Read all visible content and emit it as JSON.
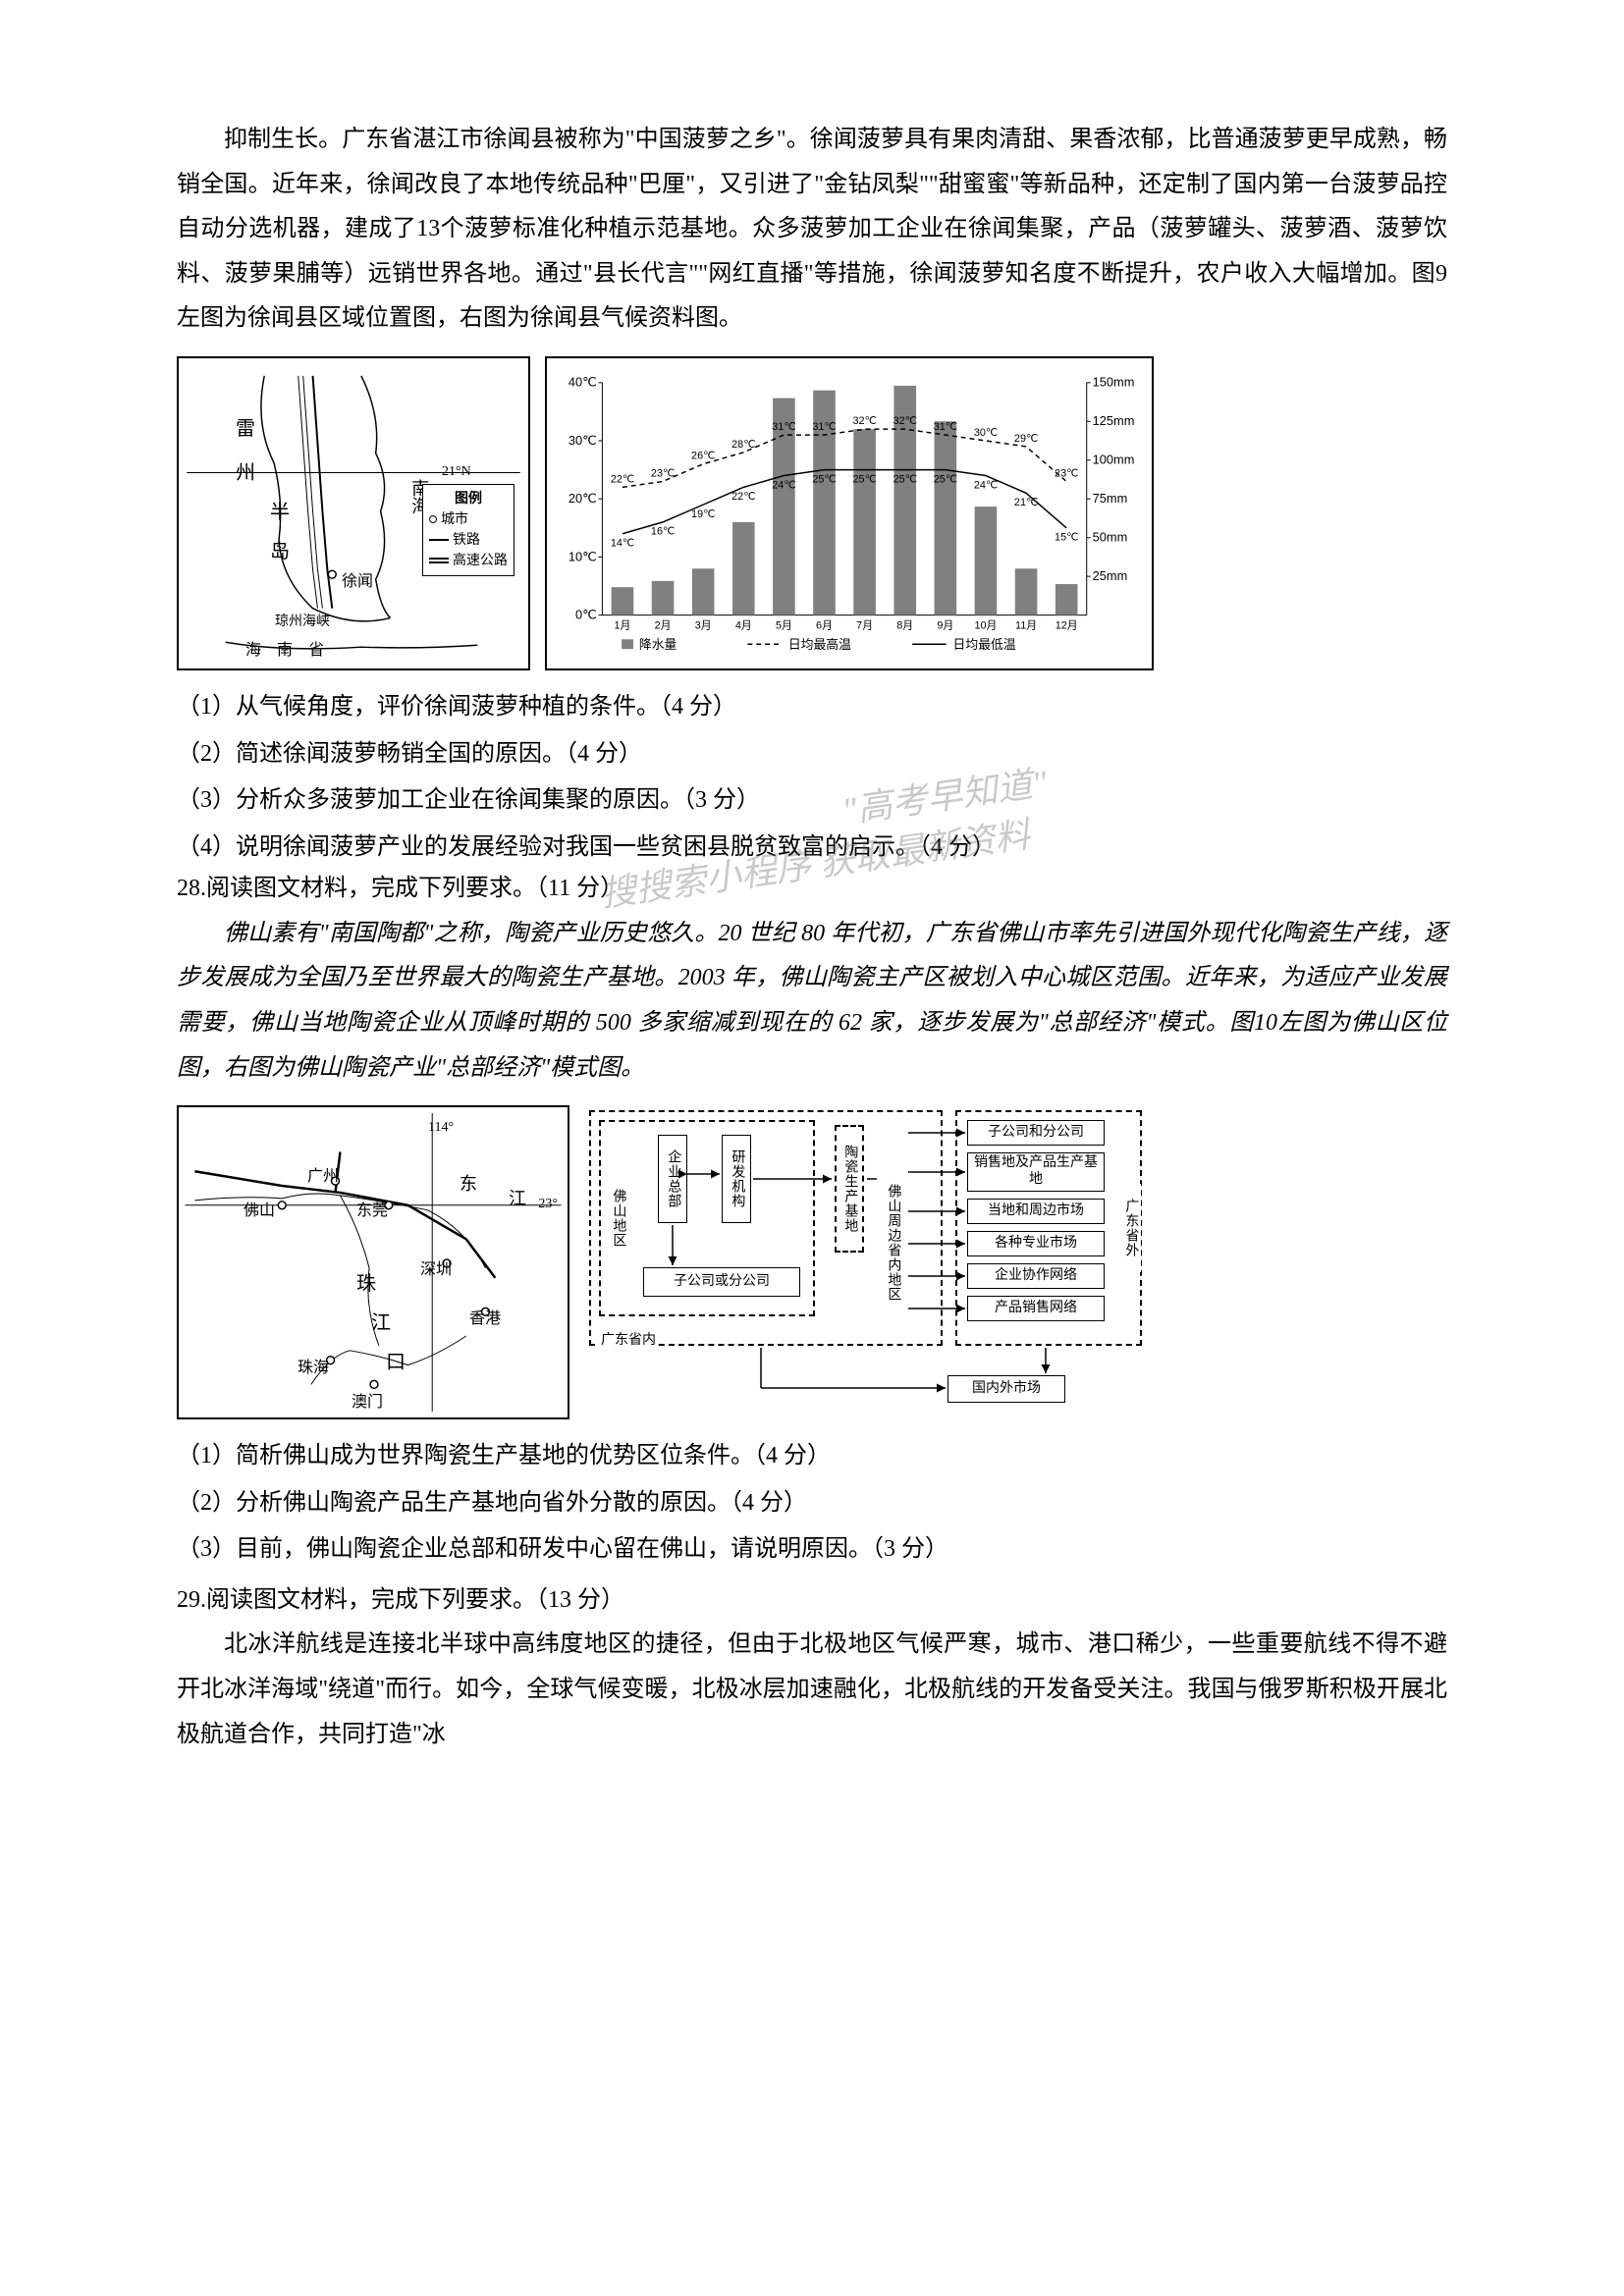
{
  "intro_paragraph": "抑制生长。广东省湛江市徐闻县被称为\"中国菠萝之乡\"。徐闻菠萝具有果肉清甜、果香浓郁，比普通菠萝更早成熟，畅销全国。近年来，徐闻改良了本地传统品种\"巴厘\"，又引进了\"金钻凤梨\"\"甜蜜蜜\"等新品种，还定制了国内第一台菠萝品控自动分选机器，建成了13个菠萝标准化种植示范基地。众多菠萝加工企业在徐闻集聚，产品（菠萝罐头、菠萝酒、菠萝饮料、菠萝果脯等）远销世界各地。通过\"县长代言\"\"网红直播\"等措施，徐闻菠萝知名度不断提升，农户收入大幅增加。图9左图为徐闻县区域位置图，右图为徐闻县气候资料图。",
  "map1": {
    "labels": {
      "leizhou": "雷",
      "zhou": "州",
      "ban": "半",
      "dao": "岛",
      "nanhai": "南海",
      "xuwen": "徐闻",
      "qiongzhou": "琼州海峡",
      "hainan": "海 南 省",
      "lat": "21°N"
    },
    "legend_title": "图例",
    "legend_city": "城市",
    "legend_rail": "铁路",
    "legend_highway": "高速公路"
  },
  "climate_chart": {
    "months": [
      "1月",
      "2月",
      "3月",
      "4月",
      "5月",
      "6月",
      "7月",
      "8月",
      "9月",
      "10月",
      "11月",
      "12月"
    ],
    "precipitation_mm": [
      18,
      22,
      30,
      60,
      140,
      145,
      120,
      148,
      125,
      70,
      30,
      20
    ],
    "temp_high_c": [
      22,
      23,
      26,
      28,
      31,
      31,
      32,
      32,
      31,
      30,
      29,
      23
    ],
    "temp_low_c": [
      14,
      16,
      19,
      22,
      24,
      25,
      25,
      25,
      25,
      24,
      21,
      15
    ],
    "temp_high_labels": [
      "22℃",
      "23℃",
      "26℃",
      "28℃",
      "31℃",
      "31℃",
      "32℃",
      "32℃",
      "31℃",
      "30℃",
      "29℃",
      "23℃"
    ],
    "temp_low_labels": [
      "14℃",
      "16℃",
      "19℃",
      "22℃",
      "24℃",
      "25℃",
      "25℃",
      "25℃",
      "25℃",
      "24℃",
      "21℃",
      "15℃"
    ],
    "y_temp_ticks": [
      "0℃",
      "10℃",
      "20℃",
      "30℃",
      "40℃"
    ],
    "y_precip_ticks": [
      "25mm",
      "50mm",
      "75mm",
      "100mm",
      "125mm",
      "150mm"
    ],
    "legend_precip": "降水量",
    "legend_high": "日均最高温",
    "legend_low": "日均最低温",
    "bar_color": "#808080",
    "line_high_style": "dashed",
    "line_low_style": "solid"
  },
  "q27": {
    "q1": "（1）从气候角度，评价徐闻菠萝种植的条件。（4 分）",
    "q2": "（2）简述徐闻菠萝畅销全国的原因。（4 分）",
    "q3": "（3）分析众多菠萝加工企业在徐闻集聚的原因。（3 分）",
    "q4": "（4）说明徐闻菠萝产业的发展经验对我国一些贫困县脱贫致富的启示。（4 分）"
  },
  "watermark": {
    "line1": "\"高考早知道\"",
    "line2": "搜搜索小程序 获取最新资料"
  },
  "q28": {
    "title": "28.阅读图文材料，完成下列要求。（11 分）",
    "paragraph": "佛山素有\"南国陶都\"之称，陶瓷产业历史悠久。20 世纪 80 年代初，广东省佛山市率先引进国外现代化陶瓷生产线，逐步发展成为全国乃至世界最大的陶瓷生产基地。2003 年，佛山陶瓷主产区被划入中心城区范围。近年来，为适应产业发展需要，佛山当地陶瓷企业从顶峰时期的 500 多家缩减到现在的 62 家，逐步发展为\"总部经济\"模式。图10左图为佛山区位图，右图为佛山陶瓷产业\"总部经济\"模式图。"
  },
  "map2": {
    "labels": {
      "guangzhou": "广州",
      "foshan": "佛山",
      "dongguan": "东莞",
      "shenzhen": "深圳",
      "zhuhai": "珠海",
      "xianggang": "香港",
      "aomen": "澳门",
      "dong": "东",
      "jiang": "江",
      "zhu": "珠",
      "jiang2": "江",
      "kou": "口",
      "lon": "114°",
      "lat": "23°"
    }
  },
  "diagram": {
    "region1": "佛山地区",
    "region2": "广东省内",
    "region3": "广东省外",
    "box_hq": "企业总部",
    "box_rd": "研发机构",
    "box_sub": "子公司或分公司",
    "box_base": "陶瓷生产基地",
    "box_around": "佛山周边省内地区",
    "box_sub2": "子公司和分公司",
    "box_sale": "销售地及产品生产基地",
    "box_local": "当地和周边市场",
    "box_pro": "各种专业市场",
    "box_coop": "企业协作网络",
    "box_prod": "产品销售网络",
    "box_market": "国内外市场"
  },
  "q28_questions": {
    "q1": "（1）简析佛山成为世界陶瓷生产基地的优势区位条件。（4 分）",
    "q2": "（2）分析佛山陶瓷产品生产基地向省外分散的原因。（4 分）",
    "q3": "（3）目前，佛山陶瓷企业总部和研发中心留在佛山，请说明原因。（3 分）"
  },
  "q29": {
    "title": "29.阅读图文材料，完成下列要求。（13 分）",
    "paragraph": "北冰洋航线是连接北半球中高纬度地区的捷径，但由于北极地区气候严寒，城市、港口稀少，一些重要航线不得不避开北冰洋海域\"绕道\"而行。如今，全球气候变暖，北极冰层加速融化，北极航线的开发备受关注。我国与俄罗斯积极开展北极航道合作，共同打造\"冰"
  }
}
